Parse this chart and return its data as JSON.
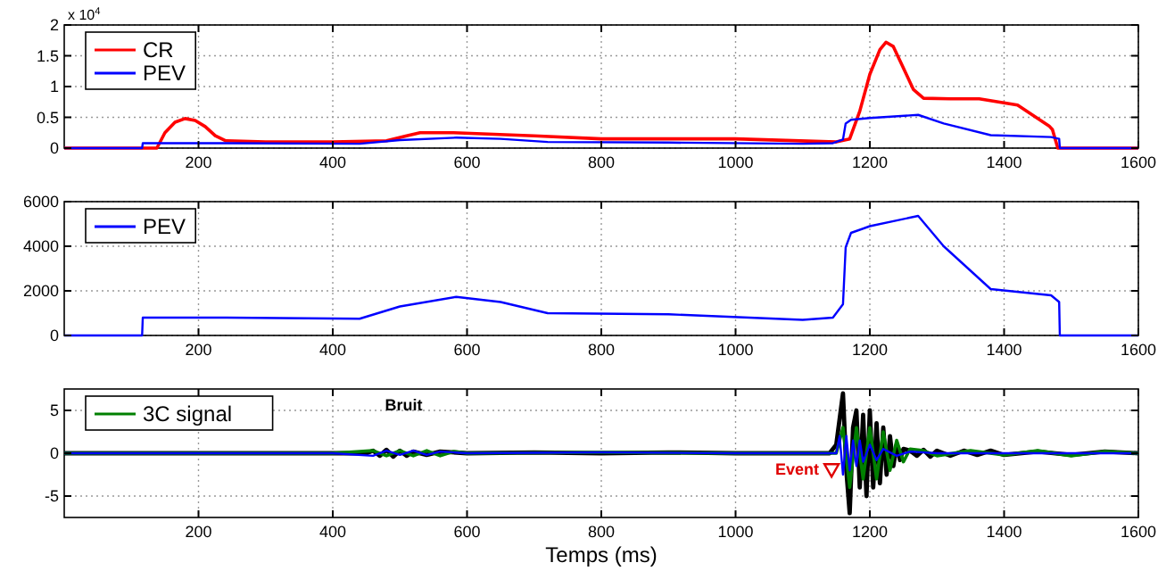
{
  "chart_data": [
    {
      "type": "line",
      "xlim": [
        0,
        1600
      ],
      "xticks": [
        200,
        400,
        600,
        800,
        1000,
        1200,
        1400,
        1600
      ],
      "ylim": [
        0,
        2
      ],
      "yticks": [
        0,
        0.5,
        1,
        1.5,
        2
      ],
      "grid": true,
      "legend": "top left",
      "annotations": [
        "x 10$^{4}$"
      ],
      "series": [
        {
          "name": "CR",
          "color": "#ff0000",
          "x": [
            0,
            138,
            150,
            165,
            180,
            195,
            210,
            225,
            240,
            300,
            400,
            480,
            510,
            530,
            580,
            700,
            800,
            1000,
            1150,
            1170,
            1185,
            1200,
            1215,
            1224,
            1235,
            1250,
            1265,
            1280,
            1320,
            1363,
            1420,
            1467,
            1472,
            1480,
            1600
          ],
          "values": [
            0,
            0,
            0.25,
            0.42,
            0.48,
            0.45,
            0.35,
            0.2,
            0.12,
            0.1,
            0.1,
            0.12,
            0.2,
            0.25,
            0.25,
            0.2,
            0.15,
            0.15,
            0.1,
            0.15,
            0.6,
            1.2,
            1.6,
            1.72,
            1.65,
            1.3,
            0.95,
            0.81,
            0.8,
            0.8,
            0.7,
            0.36,
            0.3,
            0,
            0
          ]
        },
        {
          "name": "PEV",
          "color": "#0000ff",
          "x": [
            0,
            116,
            117,
            240,
            440,
            500,
            584,
            650,
            720,
            900,
            1100,
            1145,
            1160,
            1164,
            1172,
            1200,
            1272,
            1310,
            1380,
            1470,
            1482,
            1483,
            1600
          ],
          "values": [
            0,
            0,
            0.08,
            0.08,
            0.07,
            0.13,
            0.17,
            0.15,
            0.1,
            0.09,
            0.07,
            0.08,
            0.14,
            0.4,
            0.46,
            0.49,
            0.54,
            0.4,
            0.21,
            0.18,
            0.15,
            0,
            0
          ]
        }
      ]
    },
    {
      "type": "line",
      "xlim": [
        0,
        1600
      ],
      "xticks": [
        200,
        400,
        600,
        800,
        1000,
        1200,
        1400,
        1600
      ],
      "ylim": [
        0,
        6000
      ],
      "yticks": [
        0,
        2000,
        4000,
        6000
      ],
      "grid": true,
      "legend": "top left",
      "series": [
        {
          "name": "PEV",
          "color": "#0000ff",
          "x": [
            0,
            116,
            117,
            240,
            440,
            500,
            584,
            650,
            720,
            900,
            1100,
            1145,
            1160,
            1164,
            1172,
            1200,
            1272,
            1310,
            1380,
            1470,
            1482,
            1483,
            1600
          ],
          "values": [
            0,
            0,
            800,
            800,
            750,
            1300,
            1730,
            1500,
            1000,
            950,
            700,
            800,
            1400,
            3950,
            4600,
            4900,
            5360,
            4000,
            2080,
            1800,
            1500,
            0,
            0
          ]
        }
      ]
    },
    {
      "type": "line",
      "xlim": [
        0,
        1600
      ],
      "xticks": [
        200,
        400,
        600,
        800,
        1000,
        1200,
        1400,
        1600
      ],
      "ylim": [
        -7.5,
        7.5
      ],
      "yticks": [
        -5,
        0,
        5
      ],
      "grid": true,
      "legend": "top left",
      "xlabel": "Temps (ms)",
      "annotations": [
        "Bruit",
        {
          "text": "Event",
          "x": 1143,
          "y": -1.9
        }
      ],
      "series": [
        {
          "color": "#000000",
          "x": [
            0,
            200,
            400,
            450,
            460,
            470,
            480,
            490,
            500,
            510,
            520,
            540,
            560,
            600,
            700,
            800,
            900,
            1000,
            1100,
            1140,
            1150,
            1155,
            1160,
            1165,
            1170,
            1175,
            1180,
            1185,
            1190,
            1195,
            1200,
            1205,
            1210,
            1215,
            1220,
            1225,
            1230,
            1235,
            1240,
            1245,
            1250,
            1260,
            1270,
            1280,
            1290,
            1300,
            1320,
            1340,
            1360,
            1380,
            1400,
            1450,
            1500,
            1550,
            1600
          ],
          "values": [
            0,
            0,
            0,
            0,
            0.3,
            -0.3,
            0.4,
            -0.4,
            0.3,
            -0.3,
            0.2,
            -0.2,
            0.2,
            0,
            0.1,
            0,
            0.1,
            0,
            0,
            0,
            1,
            4,
            7,
            -2,
            -7,
            3,
            5,
            -4,
            4.5,
            -5,
            5,
            -4,
            3.5,
            -3.5,
            3,
            -2.5,
            2,
            -1.5,
            1,
            -0.8,
            0.5,
            0.3,
            -0.3,
            0.4,
            -0.4,
            0.3,
            -0.3,
            0.3,
            -0.2,
            0.3,
            -0.2,
            0.2,
            -0.2,
            0.2,
            0
          ]
        },
        {
          "name": "3C signal",
          "color": "#008000",
          "x": [
            0,
            400,
            460,
            480,
            500,
            520,
            540,
            560,
            580,
            600,
            800,
            1000,
            1100,
            1150,
            1160,
            1170,
            1180,
            1190,
            1200,
            1210,
            1220,
            1230,
            1240,
            1250,
            1260,
            1280,
            1300,
            1350,
            1400,
            1450,
            1500,
            1550,
            1600
          ],
          "values": [
            0,
            0,
            0.3,
            -0.3,
            0.3,
            -0.3,
            0.3,
            -0.3,
            0.2,
            0,
            0.1,
            0,
            0,
            0,
            3,
            -4,
            3,
            -3,
            3,
            -3,
            2.5,
            -2,
            1.5,
            -1,
            0.5,
            0.3,
            -0.3,
            0.3,
            -0.2,
            0.3,
            -0.3,
            0.2,
            0
          ]
        },
        {
          "color": "#0000ff",
          "x": [
            0,
            400,
            460,
            480,
            500,
            520,
            540,
            560,
            600,
            800,
            1000,
            1100,
            1150,
            1155,
            1160,
            1165,
            1170,
            1175,
            1180,
            1185,
            1190,
            1200,
            1210,
            1220,
            1240,
            1260,
            1300,
            1400,
            1500,
            1600
          ],
          "values": [
            0,
            0,
            -0.3,
            0.3,
            -0.2,
            0.3,
            -0.2,
            0.2,
            0,
            0.1,
            0,
            0,
            0,
            2,
            -2.5,
            2,
            -2,
            1.5,
            -1.5,
            1.5,
            -1,
            1,
            -0.8,
            0.5,
            -0.3,
            0.2,
            0,
            0,
            0,
            0
          ]
        }
      ]
    }
  ]
}
